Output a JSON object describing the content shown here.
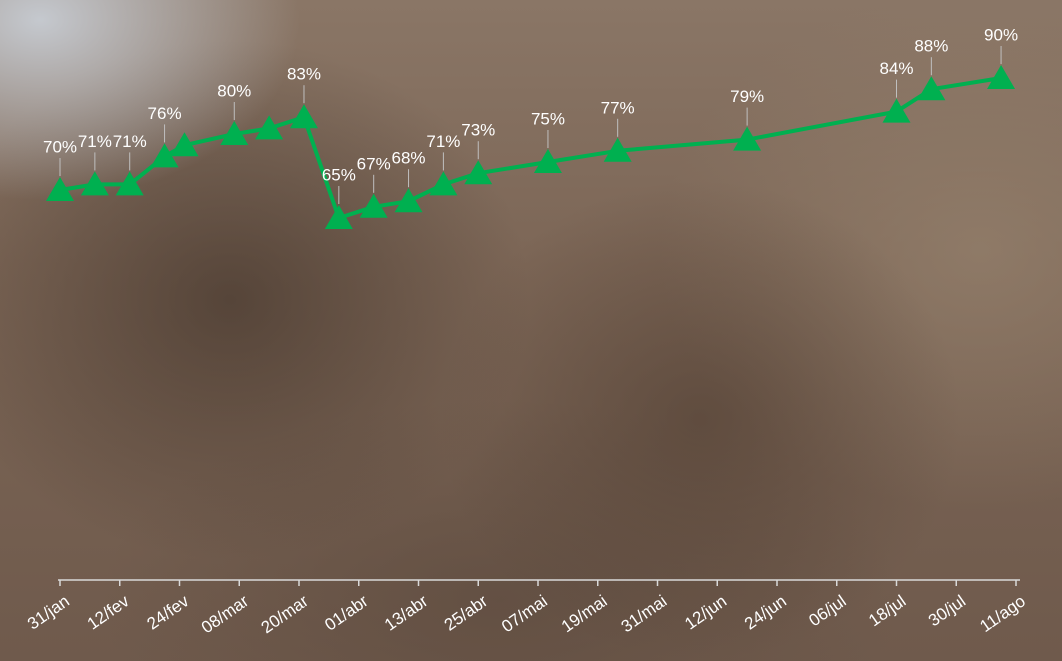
{
  "chart_data": {
    "type": "line",
    "x": [
      "31/jan",
      "07/fev",
      "14/fev",
      "21/fev",
      "25/fev",
      "07/mar",
      "14/mar",
      "21/mar",
      "28/mar",
      "04/abr",
      "11/abr",
      "18/abr",
      "25/abr",
      "09/mai",
      "23/mai",
      "18/jun",
      "18/jul",
      "25/jul",
      "08/ago"
    ],
    "series": [
      {
        "color": "#00b050",
        "values": [
          70,
          71,
          71,
          76,
          78,
          80,
          81,
          83,
          65,
          67,
          68,
          71,
          73,
          75,
          77,
          79,
          84,
          88,
          90
        ],
        "value_labels": [
          "70%",
          "71%",
          "71%",
          "76%",
          null,
          "80%",
          null,
          "83%",
          "65%",
          "67%",
          "68%",
          "71%",
          "73%",
          "75%",
          "77%",
          "79%",
          "84%",
          "88%",
          "90%"
        ]
      }
    ],
    "xticks": [
      "31/jan",
      "12/fev",
      "24/fev",
      "08/mar",
      "20/mar",
      "01/abr",
      "13/abr",
      "25/abr",
      "07/mai",
      "19/mai",
      "31/mai",
      "12/jun",
      "24/jun",
      "06/jul",
      "18/jul",
      "30/jul",
      "11/ago"
    ],
    "marker": "triangle"
  }
}
